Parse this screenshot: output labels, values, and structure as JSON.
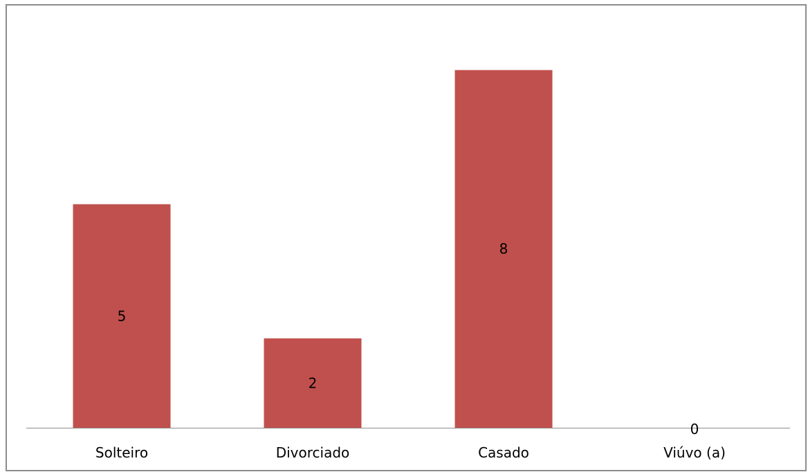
{
  "chart_data": {
    "type": "bar",
    "categories": [
      "Solteiro",
      "Divorciado",
      "Casado",
      "Viúvo (a)"
    ],
    "values": [
      5,
      2,
      8,
      0
    ],
    "data_labels": [
      "5",
      "2",
      "8",
      "0"
    ],
    "title": "",
    "xlabel": "",
    "ylabel": "",
    "ylim": [
      0,
      8.9
    ],
    "grid": false,
    "legend": "none",
    "bar_color": "#c0504d",
    "axis_color": "#8c8c8c"
  }
}
